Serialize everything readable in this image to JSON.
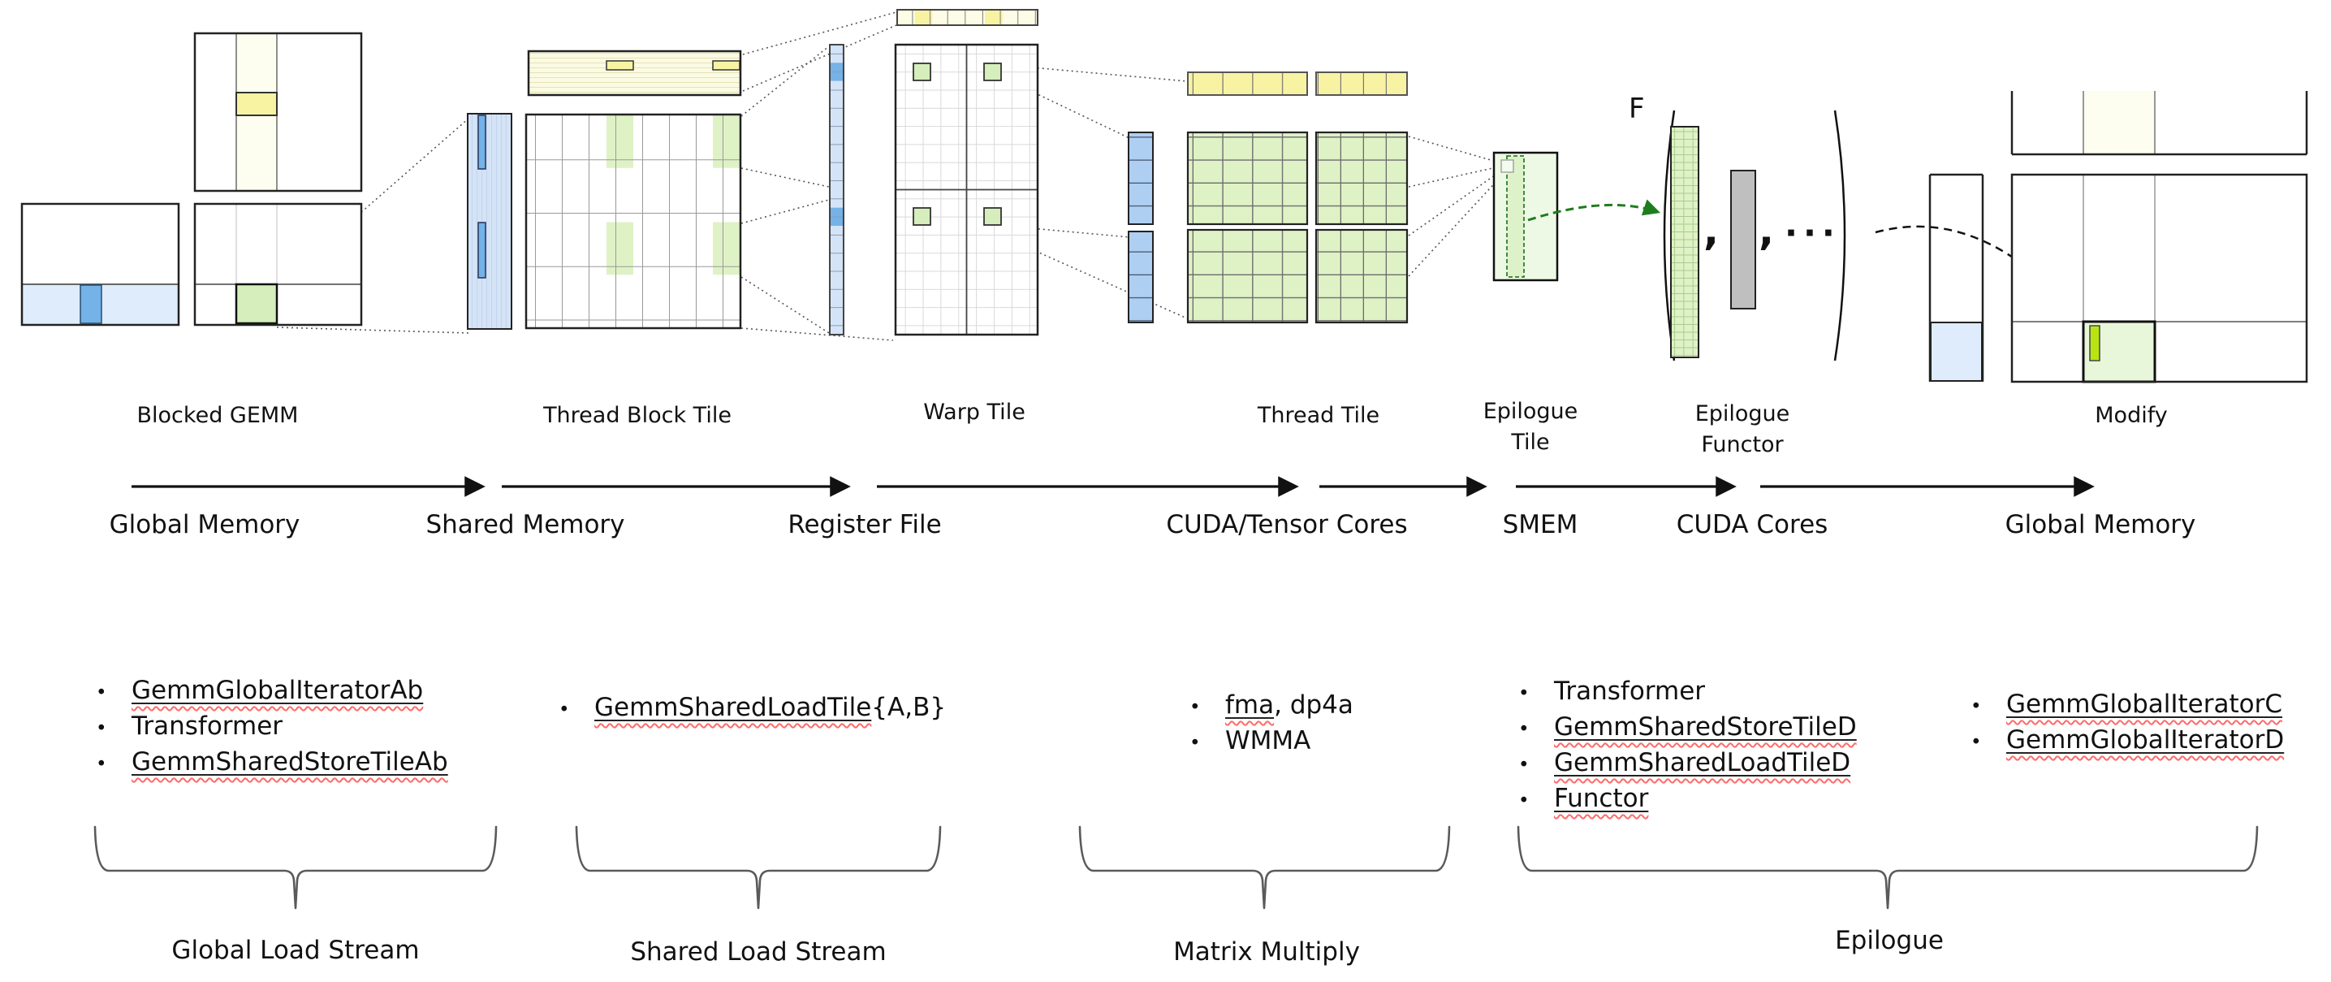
{
  "colors": {
    "ink": "#1a1a1a",
    "text": "#111111",
    "blue_light": "#deecfb",
    "blue_mid": "#74b2e8",
    "blue_cell": "#d4e3f6",
    "blue_quad": "#aecff2",
    "ivory": "#fdfef0",
    "yellow_pale": "#fbfae2",
    "yellow": "#f8f3a3",
    "cream": "#fdfce6",
    "green_pale": "#edf9e4",
    "green_cell": "#d5eebb",
    "green_grid": "#dff2c6",
    "green_dash_fill": "#ddf2c8",
    "modify_green": "#e8f6da",
    "lime": "#b9e414",
    "gray_bar": "#bfbfbf",
    "green_arrow": "#1e7d1e",
    "underline": "#222222",
    "squiggle": "#ff6a6a",
    "brace": "#5a5a5a"
  },
  "stages": [
    {
      "label": "Blocked GEMM"
    },
    {
      "label": "Thread Block Tile"
    },
    {
      "label": "Warp Tile"
    },
    {
      "label": "Thread Tile"
    },
    {
      "label": "Epilogue\nTile"
    },
    {
      "label": "Epilogue\nFunctor"
    },
    {
      "label": "Modify"
    }
  ],
  "memory_flow": {
    "labels": [
      "Global Memory",
      "Shared Memory",
      "Register File",
      "CUDA/Tensor Cores",
      "SMEM",
      "CUDA Cores",
      "Global Memory"
    ]
  },
  "functor": {
    "f": "F",
    "comma": ",",
    "ellipsis": "···"
  },
  "bullet": "•",
  "lists": [
    {
      "items": [
        {
          "u": "GemmGlobalIteratorAb"
        },
        {
          "t": "Transformer"
        },
        {
          "u": "GemmSharedStoreTileAb"
        }
      ]
    },
    {
      "items": [
        {
          "u": "GemmSharedLoadTile",
          "t": "{A,B}"
        }
      ]
    },
    {
      "items": [
        {
          "u": "fma",
          "t": ", dp4a"
        },
        {
          "t": "WMMA"
        }
      ]
    },
    {
      "items": [
        {
          "t": "Transformer"
        },
        {
          "u": "GemmSharedStoreTileD"
        },
        {
          "u": "GemmSharedLoadTileD"
        },
        {
          "u": "Functor"
        }
      ]
    },
    {
      "items": [
        {
          "u": "GemmGlobalIteratorC"
        },
        {
          "u": "GemmGlobalIteratorD"
        }
      ]
    }
  ],
  "braces": [
    {
      "label": "Global Load Stream"
    },
    {
      "label": "Shared Load Stream"
    },
    {
      "label": "Matrix Multiply"
    },
    {
      "label": "Epilogue"
    }
  ]
}
